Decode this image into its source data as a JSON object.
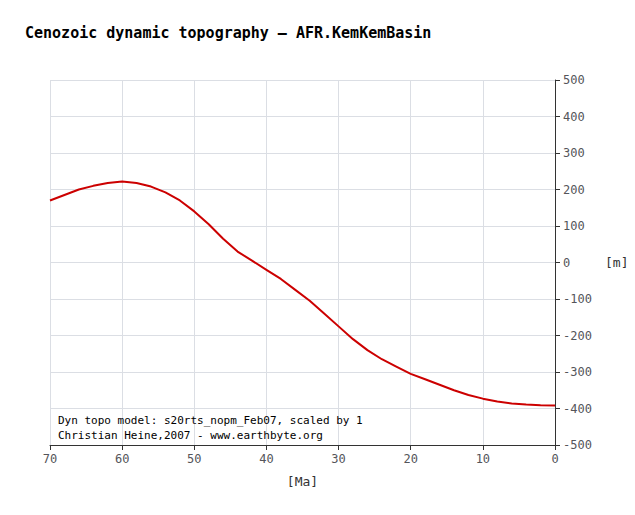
{
  "chart_data": {
    "type": "line",
    "title": "Cenozoic dynamic topography – AFR.KemKemBasin",
    "xlabel": "[Ma]",
    "ylabel": "[m]",
    "annotations": [
      "Dyn topo model: s20rts_nopm_Feb07, scaled by 1",
      "Christian Heine,2007 - www.earthbyte.org"
    ],
    "x": [
      70,
      68,
      66,
      64,
      62,
      60,
      58,
      56,
      54,
      52,
      50,
      48,
      46,
      44,
      42,
      40,
      38,
      36,
      34,
      32,
      30,
      28,
      26,
      24,
      22,
      20,
      18,
      16,
      14,
      12,
      10,
      8,
      6,
      4,
      2,
      0
    ],
    "values": [
      170,
      185,
      200,
      210,
      218,
      222,
      218,
      208,
      192,
      170,
      140,
      105,
      65,
      30,
      5,
      -20,
      -45,
      -75,
      -105,
      -140,
      -175,
      -210,
      -240,
      -265,
      -285,
      -305,
      -320,
      -335,
      -350,
      -363,
      -373,
      -381,
      -386,
      -389,
      -391,
      -392
    ],
    "color": "#cc0000",
    "xlim": [
      70,
      0
    ],
    "ylim": [
      -500,
      500
    ],
    "xticks": [
      70,
      60,
      50,
      40,
      30,
      20,
      10,
      0
    ],
    "yticks": [
      -500,
      -400,
      -300,
      -200,
      -100,
      0,
      100,
      200,
      300,
      400,
      500
    ],
    "grid": true
  }
}
